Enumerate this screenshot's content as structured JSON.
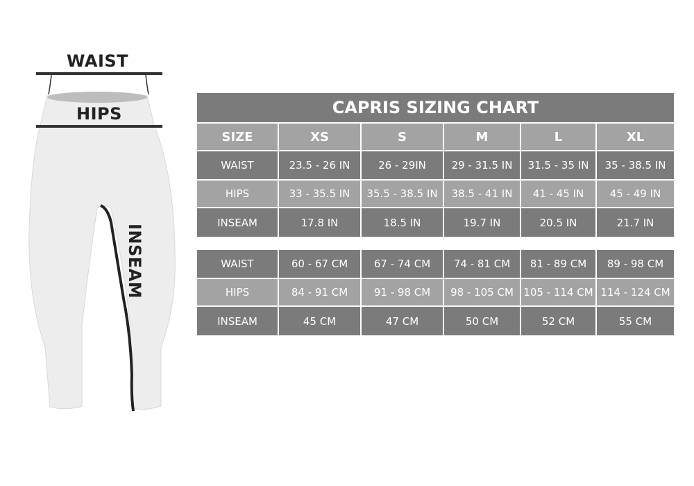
{
  "figure": {
    "waist_label": "WAIST",
    "hips_label": "HIPS",
    "inseam_label": "INSEAM"
  },
  "chart": {
    "title": "CAPRIS SIZING CHART",
    "header": [
      "SIZE",
      "XS",
      "S",
      "M",
      "L",
      "XL"
    ],
    "inches": [
      [
        "WAIST",
        "23.5 - 26 IN",
        "26 - 29IN",
        "29 - 31.5 IN",
        "31.5 - 35 IN",
        "35 - 38.5 IN"
      ],
      [
        "HIPS",
        "33 - 35.5 IN",
        "35.5 - 38.5 IN",
        "38.5 - 41 IN",
        "41 - 45 IN",
        "45 - 49 IN"
      ],
      [
        "INSEAM",
        "17.8 IN",
        "18.5 IN",
        "19.7 IN",
        "20.5 IN",
        "21.7 IN"
      ]
    ],
    "cm": [
      [
        "WAIST",
        "60 - 67 CM",
        "67 - 74 CM",
        "74 - 81 CM",
        "81 - 89 CM",
        "89 - 98 CM"
      ],
      [
        "HIPS",
        "84 - 91 CM",
        "91 - 98 CM",
        "98 - 105 CM",
        "105 - 114 CM",
        "114 - 124 CM"
      ],
      [
        "INSEAM",
        "45 CM",
        "47 CM",
        "50 CM",
        "52 CM",
        "55 CM"
      ]
    ]
  },
  "colors": {
    "dark": "#7b7b7b",
    "light": "#a3a3a3",
    "text": "#ffffff",
    "ink": "#222222"
  }
}
